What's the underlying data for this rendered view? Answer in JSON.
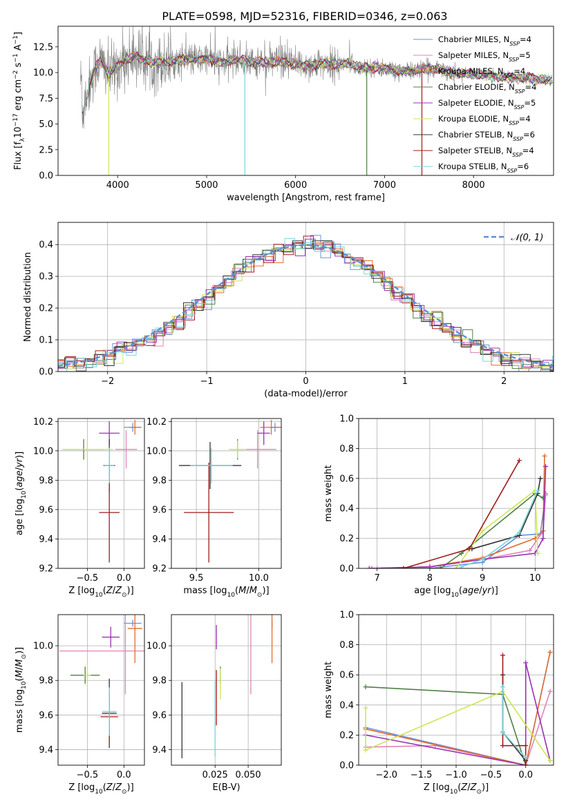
{
  "colors": {
    "chabrier_miles": "#6a8fe0",
    "salpeter_miles": "#e083b8",
    "kroupa_miles": "#e26b2c",
    "chabrier_elodie": "#4f7f47",
    "salpeter_elodie": "#9a2fb6",
    "kroupa_elodie": "#c9e756",
    "chabrier_stelib": "#333333",
    "salpeter_stelib": "#a11a1a",
    "kroupa_stelib": "#77d6dc",
    "data_spectrum": "#808080",
    "normal_curve": "#5b8fd6"
  },
  "chart_data": [
    {
      "id": "spectrum",
      "type": "line",
      "title": "PLATE=0598, MJD=52316, FIBERID=0346, z=0.063",
      "xlabel": "wavelength [Angstrom, rest frame]",
      "ylabel": "Flux [f_λ 10^-17 erg cm^-2 s^-1 A^-1]",
      "xlim": [
        3330,
        8900
      ],
      "ylim": [
        0,
        14.5
      ],
      "xticks": [
        "4000",
        "5000",
        "6000",
        "7000",
        "8000"
      ],
      "yticks": [
        "0.0",
        "2.5",
        "5.0",
        "7.5",
        "10.0",
        "12.5"
      ],
      "grid": false,
      "legend_position": "top-right",
      "legend": [
        "Chabrier MILES, N_SSP=4",
        "Salpeter MILES, N_SSP=5",
        "Kroupa MILES, N_SSP=4",
        "Chabrier ELODIE, N_SSP=4",
        "Salpeter ELODIE, N_SSP=5",
        "Kroupa ELODIE, N_SSP=4",
        "Chabrier STELIB, N_SSP=6",
        "Salpeter STELIB, N_SSP=4",
        "Kroupa STELIB, N_SSP=6"
      ],
      "data_continuum": [
        [
          3600,
          6.0
        ],
        [
          3650,
          8.0
        ],
        [
          3700,
          9.2
        ],
        [
          3750,
          10.5
        ],
        [
          3800,
          11.2
        ],
        [
          3850,
          10.6
        ],
        [
          3900,
          9.8
        ],
        [
          3950,
          10.2
        ],
        [
          4000,
          10.6
        ],
        [
          4100,
          11.3
        ],
        [
          4200,
          11.6
        ],
        [
          4300,
          11.2
        ],
        [
          4400,
          11.0
        ],
        [
          4500,
          11.0
        ],
        [
          4600,
          11.1
        ],
        [
          4700,
          11.2
        ],
        [
          4800,
          11.3
        ],
        [
          4900,
          11.2
        ],
        [
          5000,
          11.4
        ],
        [
          5100,
          11.1
        ],
        [
          5200,
          10.9
        ],
        [
          5300,
          11.3
        ],
        [
          5400,
          11.2
        ],
        [
          5500,
          11.0
        ],
        [
          5600,
          11.0
        ],
        [
          5700,
          10.9
        ],
        [
          5800,
          11.1
        ],
        [
          5900,
          10.9
        ],
        [
          6000,
          10.8
        ],
        [
          6100,
          10.7
        ],
        [
          6200,
          10.7
        ],
        [
          6300,
          10.9
        ],
        [
          6400,
          10.8
        ],
        [
          6500,
          10.8
        ],
        [
          6600,
          10.9
        ],
        [
          6700,
          10.6
        ],
        [
          6800,
          10.5
        ],
        [
          6900,
          10.5
        ],
        [
          7000,
          10.4
        ],
        [
          7100,
          10.2
        ],
        [
          7200,
          10.1
        ],
        [
          7300,
          10.1
        ],
        [
          7400,
          10.3
        ],
        [
          7500,
          10.3
        ],
        [
          7600,
          10.4
        ],
        [
          7700,
          10.1
        ],
        [
          7800,
          9.9
        ],
        [
          7900,
          9.9
        ],
        [
          8000,
          9.8
        ],
        [
          8100,
          9.8
        ],
        [
          8200,
          9.7
        ],
        [
          8300,
          9.6
        ],
        [
          8400,
          9.5
        ],
        [
          8500,
          9.5
        ],
        [
          8600,
          9.5
        ],
        [
          8700,
          9.4
        ],
        [
          8800,
          9.3
        ],
        [
          8900,
          9.2
        ]
      ],
      "model_drops": [
        {
          "x": 3900,
          "y": 0
        },
        {
          "x": 5430,
          "y": 0
        },
        {
          "x": 6800,
          "y": 0
        },
        {
          "x": 7420,
          "y": 0
        }
      ]
    },
    {
      "id": "residual_histogram",
      "type": "histogram",
      "xlabel": "(data-model)/error",
      "ylabel": "Normed distribution",
      "xlim": [
        -2.5,
        2.5
      ],
      "ylim": [
        0,
        0.47
      ],
      "xticks": [
        "−2",
        "−1",
        "0",
        "1",
        "2"
      ],
      "yticks": [
        "0.0",
        "0.1",
        "0.2",
        "0.3",
        "0.4"
      ],
      "grid": true,
      "legend_position": "top-right",
      "legend": [
        "𝒩(0, 1)"
      ],
      "bin_width": 0.1,
      "reference_curve": "standard normal density"
    },
    {
      "id": "age_vs_z",
      "type": "scatter",
      "xlabel": "Z [log10(Z/Z⊙)]",
      "ylabel": "age [log10(age/yr)]",
      "xlim": [
        -0.9,
        0.28
      ],
      "ylim": [
        9.2,
        10.22
      ],
      "xticks": [
        "−0.5",
        "0.0"
      ],
      "yticks": [
        "9.2",
        "9.4",
        "9.6",
        "9.8",
        "10.0",
        "10.2"
      ],
      "grid": true,
      "points": [
        {
          "model": "Chabrier MILES",
          "x": 0.12,
          "y": 10.16,
          "xerr": 0.12,
          "yerr": 0.03
        },
        {
          "model": "Salpeter MILES",
          "x": 0.03,
          "y": 10.01,
          "xerr": 0.15,
          "yerr": 0.13
        },
        {
          "model": "Kroupa MILES",
          "x": 0.15,
          "y": 10.16,
          "xerr": 0.08,
          "yerr": 0.05
        },
        {
          "model": "Chabrier ELODIE",
          "x": -0.55,
          "y": 10.01,
          "xerr": 0.28,
          "yerr": 0.07
        },
        {
          "model": "Salpeter ELODIE",
          "x": -0.2,
          "y": 10.12,
          "xerr": 0.14,
          "yerr": 0.08
        },
        {
          "model": "Kroupa ELODIE",
          "x": -0.5,
          "y": 10.01,
          "xerr": 0.35,
          "yerr": 0.06
        },
        {
          "model": "Chabrier STELIB",
          "x": -0.2,
          "y": 9.9,
          "xerr": 0.08,
          "yerr": 0.18
        },
        {
          "model": "Salpeter STELIB",
          "x": -0.2,
          "y": 9.58,
          "xerr": 0.14,
          "yerr": 0.34
        },
        {
          "model": "Kroupa STELIB",
          "x": -0.2,
          "y": 9.9,
          "xerr": 0.07,
          "yerr": 0.12
        }
      ]
    },
    {
      "id": "age_vs_mass",
      "type": "scatter",
      "xlabel": "mass [log10(M/M⊙)]",
      "ylabel": "",
      "xlim": [
        9.3,
        10.18
      ],
      "ylim": [
        9.2,
        10.22
      ],
      "xticks": [
        "9.5",
        "10.0"
      ],
      "yticks": [
        "9.2",
        "9.4",
        "9.6",
        "9.8",
        "10.0",
        "10.2"
      ],
      "grid": true,
      "points": [
        {
          "model": "Chabrier MILES",
          "x": 10.13,
          "y": 10.16,
          "xerr": 0.04,
          "yerr": 0.03
        },
        {
          "model": "Salpeter MILES",
          "x": 9.99,
          "y": 10.01,
          "xerr": 0.15,
          "yerr": 0.13
        },
        {
          "model": "Kroupa MILES",
          "x": 10.1,
          "y": 10.16,
          "xerr": 0.09,
          "yerr": 0.05
        },
        {
          "model": "Chabrier ELODIE",
          "x": 9.83,
          "y": 10.01,
          "xerr": 0.05,
          "yerr": 0.07
        },
        {
          "model": "Salpeter ELODIE",
          "x": 10.04,
          "y": 10.12,
          "xerr": 0.05,
          "yerr": 0.08
        },
        {
          "model": "Kroupa ELODIE",
          "x": 9.83,
          "y": 10.01,
          "xerr": 0.07,
          "yerr": 0.06
        },
        {
          "model": "Chabrier STELIB",
          "x": 9.61,
          "y": 9.9,
          "xerr": 0.25,
          "yerr": 0.16
        },
        {
          "model": "Salpeter STELIB",
          "x": 9.6,
          "y": 9.58,
          "xerr": 0.2,
          "yerr": 0.34
        },
        {
          "model": "Kroupa STELIB",
          "x": 9.62,
          "y": 9.9,
          "xerr": 0.17,
          "yerr": 0.12
        }
      ]
    },
    {
      "id": "weight_vs_age",
      "type": "line",
      "xlabel": "age [log10(age/yr)]",
      "ylabel": "mass weight",
      "xlim": [
        6.65,
        10.35
      ],
      "ylim": [
        0,
        1.0
      ],
      "xticks": [
        "7",
        "8",
        "9",
        "10"
      ],
      "yticks": [
        "0.0",
        "0.2",
        "0.4",
        "0.6",
        "0.8",
        "1.0"
      ],
      "grid": true,
      "series": [
        {
          "model": "Chabrier MILES",
          "x": [
            7.0,
            8.0,
            9.0,
            9.7,
            10.1,
            10.2
          ],
          "y": [
            0.0,
            0.0,
            0.04,
            0.22,
            0.23,
            0.5
          ]
        },
        {
          "model": "Salpeter MILES",
          "x": [
            7.0,
            8.0,
            9.0,
            9.9,
            10.15,
            10.2
          ],
          "y": [
            0.0,
            0.01,
            0.06,
            0.12,
            0.25,
            0.49
          ]
        },
        {
          "model": "Kroupa MILES",
          "x": [
            6.9,
            8.0,
            9.0,
            10.0,
            10.15,
            10.18
          ],
          "y": [
            0.0,
            0.01,
            0.07,
            0.2,
            0.25,
            0.75
          ]
        },
        {
          "model": "Chabrier ELODIE",
          "x": [
            8.2,
            8.6,
            10.0,
            10.15
          ],
          "y": [
            0.0,
            0.1,
            0.5,
            0.47
          ]
        },
        {
          "model": "Salpeter ELODIE",
          "x": [
            6.85,
            8.0,
            9.0,
            10.0,
            10.15,
            10.2
          ],
          "y": [
            0.0,
            0.01,
            0.06,
            0.1,
            0.2,
            0.68
          ]
        },
        {
          "model": "Kroupa ELODIE",
          "x": [
            8.5,
            9.0,
            10.0,
            10.05
          ],
          "y": [
            0.0,
            0.25,
            0.52,
            0.1
          ]
        },
        {
          "model": "Chabrier STELIB",
          "x": [
            8.8,
            9.7,
            10.05,
            10.1
          ],
          "y": [
            0.13,
            0.22,
            0.5,
            0.6
          ]
        },
        {
          "model": "Salpeter STELIB",
          "x": [
            7.5,
            8.75,
            9.7
          ],
          "y": [
            0.0,
            0.13,
            0.72
          ]
        },
        {
          "model": "Kroupa STELIB",
          "x": [
            8.6,
            9.0,
            9.7,
            10.05
          ],
          "y": [
            0.01,
            0.06,
            0.24,
            0.52
          ]
        }
      ]
    },
    {
      "id": "mass_vs_z",
      "type": "scatter",
      "xlabel": "Z [log10(Z/Z⊙)]",
      "ylabel": "mass [log10(M/M⊙)]",
      "xlim": [
        -0.9,
        0.28
      ],
      "ylim": [
        9.31,
        10.18
      ],
      "xticks": [
        "−0.5",
        "0.0"
      ],
      "yticks": [
        "9.4",
        "9.6",
        "9.8",
        "10.0"
      ],
      "grid": true,
      "points": [
        {
          "model": "Chabrier MILES",
          "x": 0.12,
          "y": 10.13,
          "xerr": 0.12,
          "yerr": 0.02
        },
        {
          "model": "Salpeter MILES",
          "x": 0.02,
          "y": 9.97,
          "xerr": 0.9,
          "yerr": 0.25
        },
        {
          "model": "Kroupa MILES",
          "x": 0.15,
          "y": 10.1,
          "xerr": 0.1,
          "yerr": 0.2
        },
        {
          "model": "Chabrier ELODIE",
          "x": -0.53,
          "y": 9.83,
          "xerr": 0.2,
          "yerr": 0.05
        },
        {
          "model": "Salpeter ELODIE",
          "x": -0.18,
          "y": 10.05,
          "xerr": 0.12,
          "yerr": 0.06
        },
        {
          "model": "Kroupa ELODIE",
          "x": -0.5,
          "y": 9.83,
          "xerr": 0.05,
          "yerr": 0.07
        },
        {
          "model": "Chabrier STELIB",
          "x": -0.2,
          "y": 9.61,
          "xerr": 0.1,
          "yerr": 0.2
        },
        {
          "model": "Salpeter STELIB",
          "x": -0.2,
          "y": 9.59,
          "xerr": 0.12,
          "yerr": 0.14
        },
        {
          "model": "Kroupa STELIB",
          "x": -0.2,
          "y": 9.62,
          "xerr": 0.1,
          "yerr": 0.14
        }
      ]
    },
    {
      "id": "mass_vs_ebv",
      "type": "scatter",
      "xlabel": "E(B-V)",
      "ylabel": "",
      "xlim": [
        -0.008,
        0.075
      ],
      "ylim": [
        9.31,
        10.18
      ],
      "xticks": [
        "0.025",
        "0.050"
      ],
      "yticks": [
        "9.4",
        "9.6",
        "9.8",
        "10.0"
      ],
      "grid": true,
      "points": [
        {
          "model": "Chabrier MILES",
          "x": 0.068,
          "y": 10.13,
          "xerr": 0.0,
          "yerr": 0.02
        },
        {
          "model": "Salpeter MILES",
          "x": 0.052,
          "y": 9.97,
          "xerr": 0.0,
          "yerr": 0.25
        },
        {
          "model": "Kroupa MILES",
          "x": 0.068,
          "y": 10.05,
          "xerr": 0.0,
          "yerr": 0.15
        },
        {
          "model": "Chabrier ELODIE",
          "x": 0.029,
          "y": 9.83,
          "xerr": 0.0,
          "yerr": 0.05
        },
        {
          "model": "Salpeter ELODIE",
          "x": 0.026,
          "y": 10.05,
          "xerr": 0.0,
          "yerr": 0.07
        },
        {
          "model": "Kroupa ELODIE",
          "x": 0.029,
          "y": 9.78,
          "xerr": 0.0,
          "yerr": 0.09
        },
        {
          "model": "Chabrier STELIB",
          "x": 0.0,
          "y": 9.57,
          "xerr": 0.0,
          "yerr": 0.22
        },
        {
          "model": "Salpeter STELIB",
          "x": 0.026,
          "y": 9.7,
          "xerr": 0.0,
          "yerr": 0.16
        },
        {
          "model": "Kroupa STELIB",
          "x": 0.025,
          "y": 9.58,
          "xerr": 0.0,
          "yerr": 0.22
        }
      ]
    },
    {
      "id": "weight_vs_z",
      "type": "line",
      "xlabel": "Z [log10(Z/Z⊙)]",
      "ylabel": "mass weight",
      "xlim": [
        -2.4,
        0.4
      ],
      "ylim": [
        0,
        1.0
      ],
      "xticks": [
        "−2.0",
        "−1.5",
        "−1.0",
        "−0.5",
        "0.0"
      ],
      "yticks": [
        "0.0",
        "0.2",
        "0.4",
        "0.6",
        "0.8",
        "1.0"
      ],
      "grid": true,
      "series": [
        {
          "model": "Chabrier MILES",
          "x": [
            -2.3,
            0.0,
            0.35
          ],
          "y": [
            0.25,
            0.0,
            0.75
          ]
        },
        {
          "model": "Salpeter MILES",
          "x": [
            -2.3,
            -1.3,
            0.0,
            0.35
          ],
          "y": [
            0.12,
            0.13,
            0.0,
            0.49
          ]
        },
        {
          "model": "Kroupa MILES",
          "x": [
            -2.3,
            0.0,
            0.35
          ],
          "y": [
            0.24,
            0.0,
            0.75
          ]
        },
        {
          "model": "Chabrier ELODIE",
          "x": [
            -2.3,
            -0.33,
            0.0
          ],
          "y": [
            0.52,
            0.47,
            0.0
          ]
        },
        {
          "model": "Salpeter ELODIE",
          "x": [
            -2.3,
            0.0,
            0.0,
            0.35
          ],
          "y": [
            0.2,
            0.0,
            0.68,
            0.03
          ]
        },
        {
          "model": "Kroupa ELODIE",
          "x": [
            -2.3,
            -2.3,
            -0.33,
            0.35
          ],
          "y": [
            0.38,
            0.1,
            0.49,
            0.03
          ]
        },
        {
          "model": "Chabrier STELIB",
          "x": [
            -0.33,
            -0.33,
            0.0
          ],
          "y": [
            0.6,
            0.22,
            0.03
          ]
        },
        {
          "model": "Salpeter STELIB",
          "x": [
            -0.33,
            -0.33,
            0.0,
            0.0
          ],
          "y": [
            0.73,
            0.13,
            0.13,
            0.0
          ]
        },
        {
          "model": "Kroupa STELIB",
          "x": [
            -0.33,
            -0.33,
            0.0
          ],
          "y": [
            0.52,
            0.22,
            0.05
          ]
        }
      ]
    }
  ]
}
